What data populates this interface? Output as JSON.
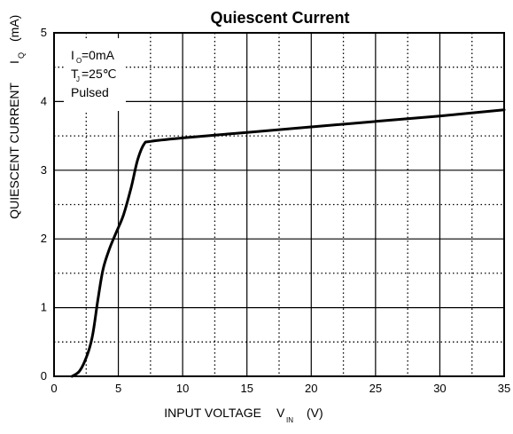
{
  "chart_data": {
    "type": "line",
    "title": "Quiescent Current",
    "xlabel": {
      "main": "INPUT VOLTAGE",
      "symbol": "V",
      "subscript": "IN",
      "unit": "(V)"
    },
    "ylabel": {
      "main": "QUIESCENT CURRENT",
      "symbol": "I",
      "subscript": "Q",
      "unit": "(mA)"
    },
    "xlim": [
      0,
      35
    ],
    "ylim": [
      0,
      5
    ],
    "xticks": [
      0,
      5,
      10,
      15,
      20,
      25,
      30,
      35
    ],
    "yticks": [
      0,
      1,
      2,
      3,
      4,
      5
    ],
    "x_minor_dotted": [
      2.5,
      7.5,
      12.5,
      17.5,
      22.5,
      27.5,
      32.5
    ],
    "y_minor_dotted": [
      0.5,
      1.5,
      2.5,
      3.5,
      4.5
    ],
    "grid": true,
    "conditions": [
      {
        "symbol": "I",
        "subscript": "O",
        "text": "=0mA"
      },
      {
        "symbol": "T",
        "subscript": "J",
        "text": "=25℃"
      },
      {
        "symbol": "",
        "subscript": "",
        "text": "Pulsed"
      }
    ],
    "series": [
      {
        "values": [
          [
            1.4,
            0.0
          ],
          [
            2.0,
            0.08
          ],
          [
            2.6,
            0.32
          ],
          [
            3.0,
            0.6
          ],
          [
            3.4,
            1.1
          ],
          [
            3.8,
            1.55
          ],
          [
            4.3,
            1.85
          ],
          [
            4.8,
            2.08
          ],
          [
            5.4,
            2.35
          ],
          [
            6.0,
            2.75
          ],
          [
            6.5,
            3.15
          ],
          [
            7.0,
            3.38
          ],
          [
            7.5,
            3.42
          ],
          [
            10,
            3.47
          ],
          [
            15,
            3.55
          ],
          [
            20,
            3.63
          ],
          [
            25,
            3.71
          ],
          [
            30,
            3.79
          ],
          [
            35,
            3.88
          ]
        ]
      }
    ]
  }
}
